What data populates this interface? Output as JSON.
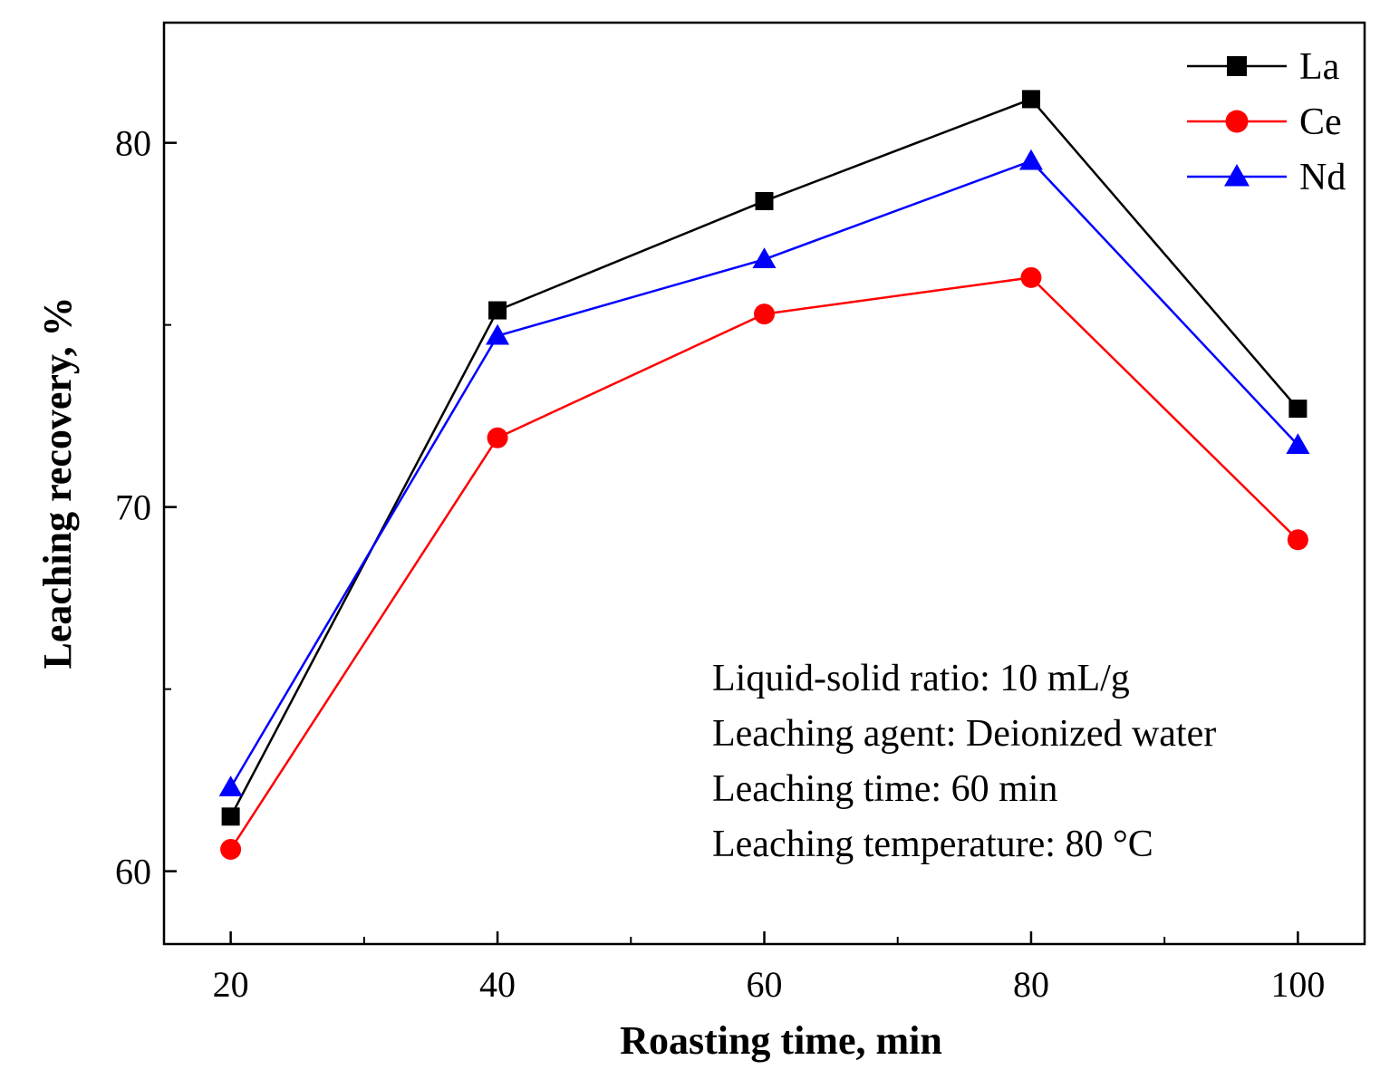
{
  "chart_data": {
    "type": "line",
    "title": "",
    "xlabel": "Roasting time, min",
    "ylabel": "Leaching recovery, %",
    "xlim": [
      15,
      105
    ],
    "ylim": [
      58,
      83.3
    ],
    "x_ticks": [
      20,
      40,
      60,
      80,
      100
    ],
    "x_minor_ticks": [
      30,
      50,
      70,
      90
    ],
    "y_ticks": [
      60,
      70,
      80
    ],
    "grid": false,
    "legend_position": "top-right",
    "x": [
      20,
      40,
      60,
      80,
      100
    ],
    "series": [
      {
        "name": "La",
        "color": "#000000",
        "marker": "square",
        "values": [
          61.5,
          75.4,
          78.4,
          81.2,
          72.7
        ]
      },
      {
        "name": "Ce",
        "color": "#ff0000",
        "marker": "circle",
        "values": [
          60.6,
          71.9,
          75.3,
          76.3,
          69.1
        ]
      },
      {
        "name": "Nd",
        "color": "#0000ff",
        "marker": "triangle",
        "values": [
          62.3,
          74.7,
          76.8,
          79.5,
          71.7
        ]
      }
    ],
    "annotations": [
      "Liquid-solid ratio: 10 mL/g",
      "Leaching agent: Deionized water",
      "Leaching time: 60 min",
      "Leaching temperature: 80 °C"
    ]
  }
}
